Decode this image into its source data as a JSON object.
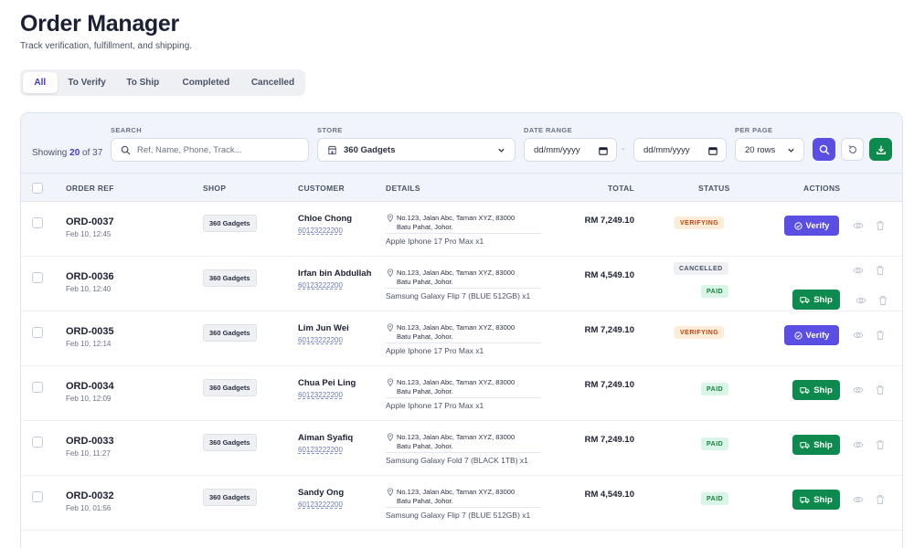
{
  "header": {
    "title": "Order Manager",
    "subtitle": "Track verification, fulfillment, and shipping."
  },
  "tabs": [
    {
      "label": "All",
      "active": true
    },
    {
      "label": "To Verify",
      "active": false
    },
    {
      "label": "To Ship",
      "active": false
    },
    {
      "label": "Completed",
      "active": false
    },
    {
      "label": "Cancelled",
      "active": false
    }
  ],
  "filters": {
    "showing_prefix": "Showing",
    "showing_count": "20",
    "showing_of": "of",
    "showing_total": "37",
    "search_label": "SEARCH",
    "search_placeholder": "Ref, Name, Phone, Track...",
    "store_label": "STORE",
    "store_value": "360 Gadgets",
    "date_label": "DATE RANGE",
    "date_from": "dd/mm/yyyy",
    "date_sep": "-",
    "date_to": "dd/mm/yyyy",
    "perpage_label": "PER PAGE",
    "perpage_value": "20 rows"
  },
  "colors": {
    "accent": "#5b4ee3",
    "ship": "#0f8a4e",
    "download": "#0f8a4e"
  },
  "columns": {
    "order_ref": "ORDER REF",
    "shop": "SHOP",
    "customer": "CUSTOMER",
    "details": "DETAILS",
    "total": "TOTAL",
    "status": "STATUS",
    "actions": "ACTIONS"
  },
  "orders": [
    {
      "ref": "ORD-0037",
      "date": "Feb 10, 12:45",
      "shop": "360 Gadgets",
      "customer": "Chloe Chong",
      "phone": "60123222200",
      "addr1": "No.123, Jalan Abc, Taman XYZ, 83000",
      "addr2": "Batu Pahat, Johor.",
      "product": "Apple Iphone 17 Pro Max x1",
      "total": "RM 7,249.10",
      "status": [
        "VERIFYING"
      ],
      "action": "Verify"
    },
    {
      "ref": "ORD-0036",
      "date": "Feb 10, 12:40",
      "shop": "360 Gadgets",
      "customer": "Irfan bin Abdullah",
      "phone": "60123222200",
      "addr1": "No.123, Jalan Abc, Taman XYZ, 83000",
      "addr2": "Batu Pahat, Johor.",
      "product": "Samsung Galaxy Flip 7 (BLUE 512GB) x1",
      "total": "RM 4,549.10",
      "status": [
        "CANCELLED",
        "PAID"
      ],
      "action": "Ship"
    },
    {
      "ref": "ORD-0035",
      "date": "Feb 10, 12:14",
      "shop": "360 Gadgets",
      "customer": "Lim Jun Wei",
      "phone": "60123222200",
      "addr1": "No.123, Jalan Abc, Taman XYZ, 83000",
      "addr2": "Batu Pahat, Johor.",
      "product": "Apple Iphone 17 Pro Max x1",
      "total": "RM 7,249.10",
      "status": [
        "VERIFYING"
      ],
      "action": "Verify"
    },
    {
      "ref": "ORD-0034",
      "date": "Feb 10, 12:09",
      "shop": "360 Gadgets",
      "customer": "Chua Pei Ling",
      "phone": "60123222200",
      "addr1": "No.123, Jalan Abc, Taman XYZ, 83000",
      "addr2": "Batu Pahat, Johor.",
      "product": "Apple Iphone 17 Pro Max x1",
      "total": "RM 7,249.10",
      "status": [
        "PAID"
      ],
      "action": "Ship"
    },
    {
      "ref": "ORD-0033",
      "date": "Feb 10, 11:27",
      "shop": "360 Gadgets",
      "customer": "Aiman Syafiq",
      "phone": "60123222200",
      "addr1": "No.123, Jalan Abc, Taman XYZ, 83000",
      "addr2": "Batu Pahat, Johor.",
      "product": "Samsung Galaxy Fold 7 (BLACK 1TB) x1",
      "total": "RM 7,249.10",
      "status": [
        "PAID"
      ],
      "action": "Ship"
    },
    {
      "ref": "ORD-0032",
      "date": "Feb 10, 01:56",
      "shop": "360 Gadgets",
      "customer": "Sandy Ong",
      "phone": "60123222200",
      "addr1": "No.123, Jalan Abc, Taman XYZ, 83000",
      "addr2": "Batu Pahat, Johor.",
      "product": "Samsung Galaxy Flip 7 (BLUE 512GB) x1",
      "total": "RM 4,549.10",
      "status": [
        "PAID"
      ],
      "action": "Ship"
    }
  ]
}
